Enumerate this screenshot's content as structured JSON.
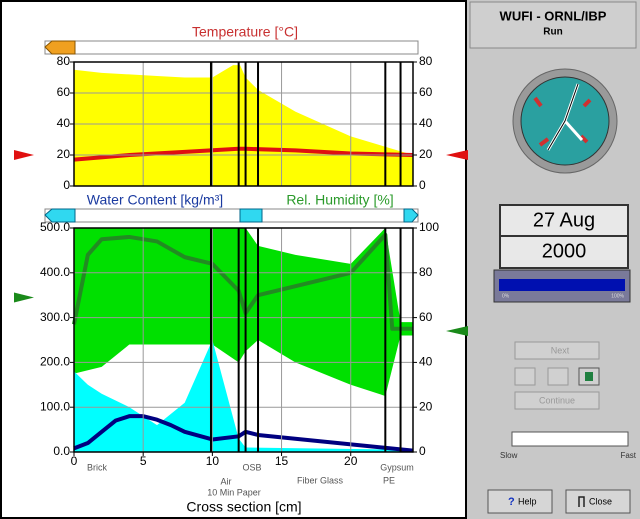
{
  "chart_data": [
    {
      "type": "line",
      "title": "Temperature [°C]",
      "xlim": [
        0,
        24.5
      ],
      "ylim": [
        0,
        80
      ],
      "yticks": [
        0,
        20,
        40,
        60,
        80
      ],
      "y2lim": [
        0,
        80
      ],
      "y2ticks": [
        0,
        20,
        40,
        60,
        80
      ],
      "boundaries": [
        9.9,
        11.9,
        12.4,
        13.3,
        22.5,
        23.6
      ],
      "left_value": 20,
      "right_value": 20,
      "marker_color": "#e01010",
      "series": [
        {
          "color": "#ffff00",
          "fill": true,
          "x": [
            0,
            2,
            4,
            6,
            8,
            10,
            11.5,
            12,
            12.4,
            13.3,
            16,
            20,
            24.5
          ],
          "values": [
            75,
            73,
            72,
            71,
            70,
            70,
            78,
            78,
            70,
            62,
            48,
            32,
            20
          ]
        },
        {
          "color": "#e01010",
          "x": [
            0,
            4,
            8,
            11.9,
            12.4,
            16,
            20,
            24.5
          ],
          "values": [
            17,
            20,
            22,
            24,
            24,
            23,
            21,
            20
          ]
        }
      ]
    },
    {
      "type": "line",
      "ylabel": "Water Content [kg/m³]",
      "y2label": "Rel. Humidity [%]",
      "xlabel": "Cross section [cm]",
      "xlim": [
        0,
        24.5
      ],
      "xticks": [
        0,
        5,
        10,
        15,
        20
      ],
      "ylim": [
        0,
        500
      ],
      "yticks": [
        {
          "value": 0,
          "label": "0.0"
        },
        {
          "value": 100,
          "label": "100.0"
        },
        {
          "value": 200,
          "label": "200.0"
        },
        {
          "value": 300,
          "label": "300.0"
        },
        {
          "value": 400,
          "label": "400.0"
        },
        {
          "value": 500,
          "label": "500.0"
        }
      ],
      "y2lim": [
        0,
        100
      ],
      "y2ticks": [
        0,
        20,
        40,
        60,
        80,
        100
      ],
      "boundaries": [
        9.9,
        11.9,
        12.4,
        13.3,
        22.5,
        23.6
      ],
      "left_value": 69,
      "right_value": 54,
      "marker_color": "#1a8a1a",
      "layers": [
        "Brick",
        "Air",
        "10 Min Paper",
        "OSB",
        "Fiber Glass",
        "Gypsum",
        "PE"
      ],
      "series": [
        {
          "color": "#00e000",
          "fill": true,
          "axis": "y2",
          "x": [
            0,
            2,
            4,
            6,
            8,
            10,
            11.9,
            12.4,
            13.3,
            16,
            20,
            22.5,
            23.6,
            24.5
          ],
          "values": [
            100,
            100,
            100,
            100,
            100,
            100,
            100,
            100,
            92,
            88,
            84,
            100,
            58,
            58
          ],
          "lower": [
            35,
            38,
            48,
            48,
            48,
            48,
            40,
            45,
            50,
            40,
            30,
            25,
            52,
            52
          ]
        },
        {
          "color": "#00ffff",
          "fill": true,
          "x": [
            0,
            1,
            2,
            4,
            6,
            8,
            10,
            11.9,
            12.4,
            24.5
          ],
          "values": [
            180,
            150,
            130,
            100,
            60,
            110,
            250,
            30,
            10,
            5
          ]
        },
        {
          "color": "#228b22",
          "axis": "y2",
          "x": [
            0,
            1,
            2,
            4,
            6,
            8,
            10,
            11.9,
            12.4,
            13.3,
            16,
            20,
            22.5,
            23,
            24.5
          ],
          "values": [
            57,
            88,
            95,
            96,
            94,
            87,
            84,
            72,
            62,
            70,
            74,
            80,
            97,
            55,
            55
          ]
        },
        {
          "color": "#000080",
          "x": [
            0,
            1,
            2,
            3,
            4,
            5,
            6,
            7,
            8,
            10,
            11.9,
            12.4,
            13.3,
            24.5
          ],
          "values": [
            8,
            20,
            45,
            70,
            80,
            80,
            72,
            60,
            45,
            28,
            35,
            45,
            38,
            3
          ]
        }
      ]
    }
  ],
  "panel": {
    "title": "WUFI - ORNL/IBP",
    "status": "Run",
    "day": "27 Aug",
    "year": "2000",
    "progress_min": "0%",
    "progress_max": "100%",
    "buttons": {
      "next": "Next",
      "continue": "Continue",
      "help": "Help",
      "close": "Close"
    },
    "speed": {
      "min": "Slow",
      "max": "Fast"
    }
  }
}
